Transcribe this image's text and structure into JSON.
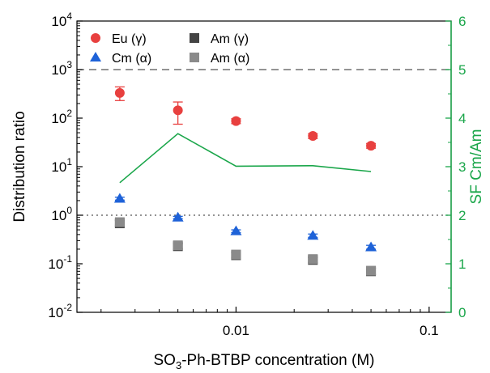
{
  "chart_data": {
    "type": "scatter",
    "xlabel": "SO3-Ph-BTBP concentration (M)",
    "xlabel_main_left": "SO",
    "xlabel_sub": "3",
    "xlabel_main_right": "-Ph-BTBP concentration (M)",
    "ylabel": "Distribution ratio",
    "ylabel_right": "SF Cm/Am",
    "x_scale": "log",
    "xlim": [
      0.0015,
      0.13
    ],
    "y_scale": "log",
    "ylim": [
      0.01,
      10000
    ],
    "ylim_right": [
      0,
      6
    ],
    "x_ticks": [
      0.01,
      0.1
    ],
    "x_tick_labels": [
      "0.01",
      "0.1"
    ],
    "y_ticks": [
      {
        "value": 0.01,
        "base": "10",
        "exp": "-2"
      },
      {
        "value": 0.1,
        "base": "10",
        "exp": "-1"
      },
      {
        "value": 1,
        "base": "10",
        "exp": "0"
      },
      {
        "value": 10,
        "base": "10",
        "exp": "1"
      },
      {
        "value": 100,
        "base": "10",
        "exp": "2"
      },
      {
        "value": 1000,
        "base": "10",
        "exp": "3"
      },
      {
        "value": 10000,
        "base": "10",
        "exp": "4"
      }
    ],
    "y_ticks_right": [
      0,
      1,
      2,
      3,
      4,
      5,
      6
    ],
    "y_tick_labels_right": [
      "0",
      "1",
      "2",
      "3",
      "4",
      "5",
      "6"
    ],
    "reference_lines": [
      {
        "axis": "y",
        "value": 1000,
        "style": "dashed",
        "color": "#555555"
      },
      {
        "axis": "y",
        "value": 1,
        "style": "dotted",
        "color": "#555555"
      }
    ],
    "legend_position": "top-left",
    "series": [
      {
        "name": "Eu (γ)",
        "marker": "circle",
        "color": "#e8403f",
        "x": [
          0.0025,
          0.005,
          0.01,
          0.025,
          0.05
        ],
        "y": [
          330,
          145,
          87,
          43,
          27
        ],
        "y_err_low": [
          100,
          70,
          10,
          5,
          3
        ],
        "y_err_high": [
          110,
          70,
          10,
          5,
          3
        ]
      },
      {
        "name": "Cm (α)",
        "marker": "triangle",
        "color": "#1e62d8",
        "x": [
          0.0025,
          0.005,
          0.01,
          0.025,
          0.05
        ],
        "y": [
          2.2,
          0.9,
          0.47,
          0.38,
          0.22
        ],
        "y_err_low": [
          0.15,
          0.05,
          0.03,
          0.03,
          0.02
        ],
        "y_err_high": [
          0.15,
          0.05,
          0.03,
          0.03,
          0.02
        ]
      },
      {
        "name": "Am  (γ)",
        "marker": "square",
        "color": "#444444",
        "x": [
          0.0025,
          0.005,
          0.01,
          0.025,
          0.05
        ],
        "y": [
          0.68,
          0.23,
          0.15,
          0.12,
          0.07
        ],
        "y_err_low": [
          0.1,
          0.03,
          0.02,
          0.015,
          0.01
        ],
        "y_err_high": [
          0.1,
          0.03,
          0.02,
          0.015,
          0.01
        ]
      },
      {
        "name": "Am  (α)",
        "marker": "square",
        "color": "#8a8a8a",
        "x": [
          0.0025,
          0.005,
          0.01,
          0.025,
          0.05
        ],
        "y": [
          0.72,
          0.24,
          0.155,
          0.125,
          0.072
        ],
        "y_err_low": [
          0.1,
          0.03,
          0.02,
          0.015,
          0.01
        ],
        "y_err_high": [
          0.1,
          0.03,
          0.02,
          0.015,
          0.01
        ]
      },
      {
        "name": "SF Cm/Am",
        "type": "line",
        "axis": "right",
        "color": "#1aa64a",
        "x": [
          0.0025,
          0.005,
          0.01,
          0.025,
          0.05
        ],
        "y": [
          2.67,
          3.68,
          3.01,
          3.02,
          2.9
        ]
      }
    ],
    "colors": {
      "axis": "#000000",
      "right_axis": "#1aa64a"
    }
  }
}
